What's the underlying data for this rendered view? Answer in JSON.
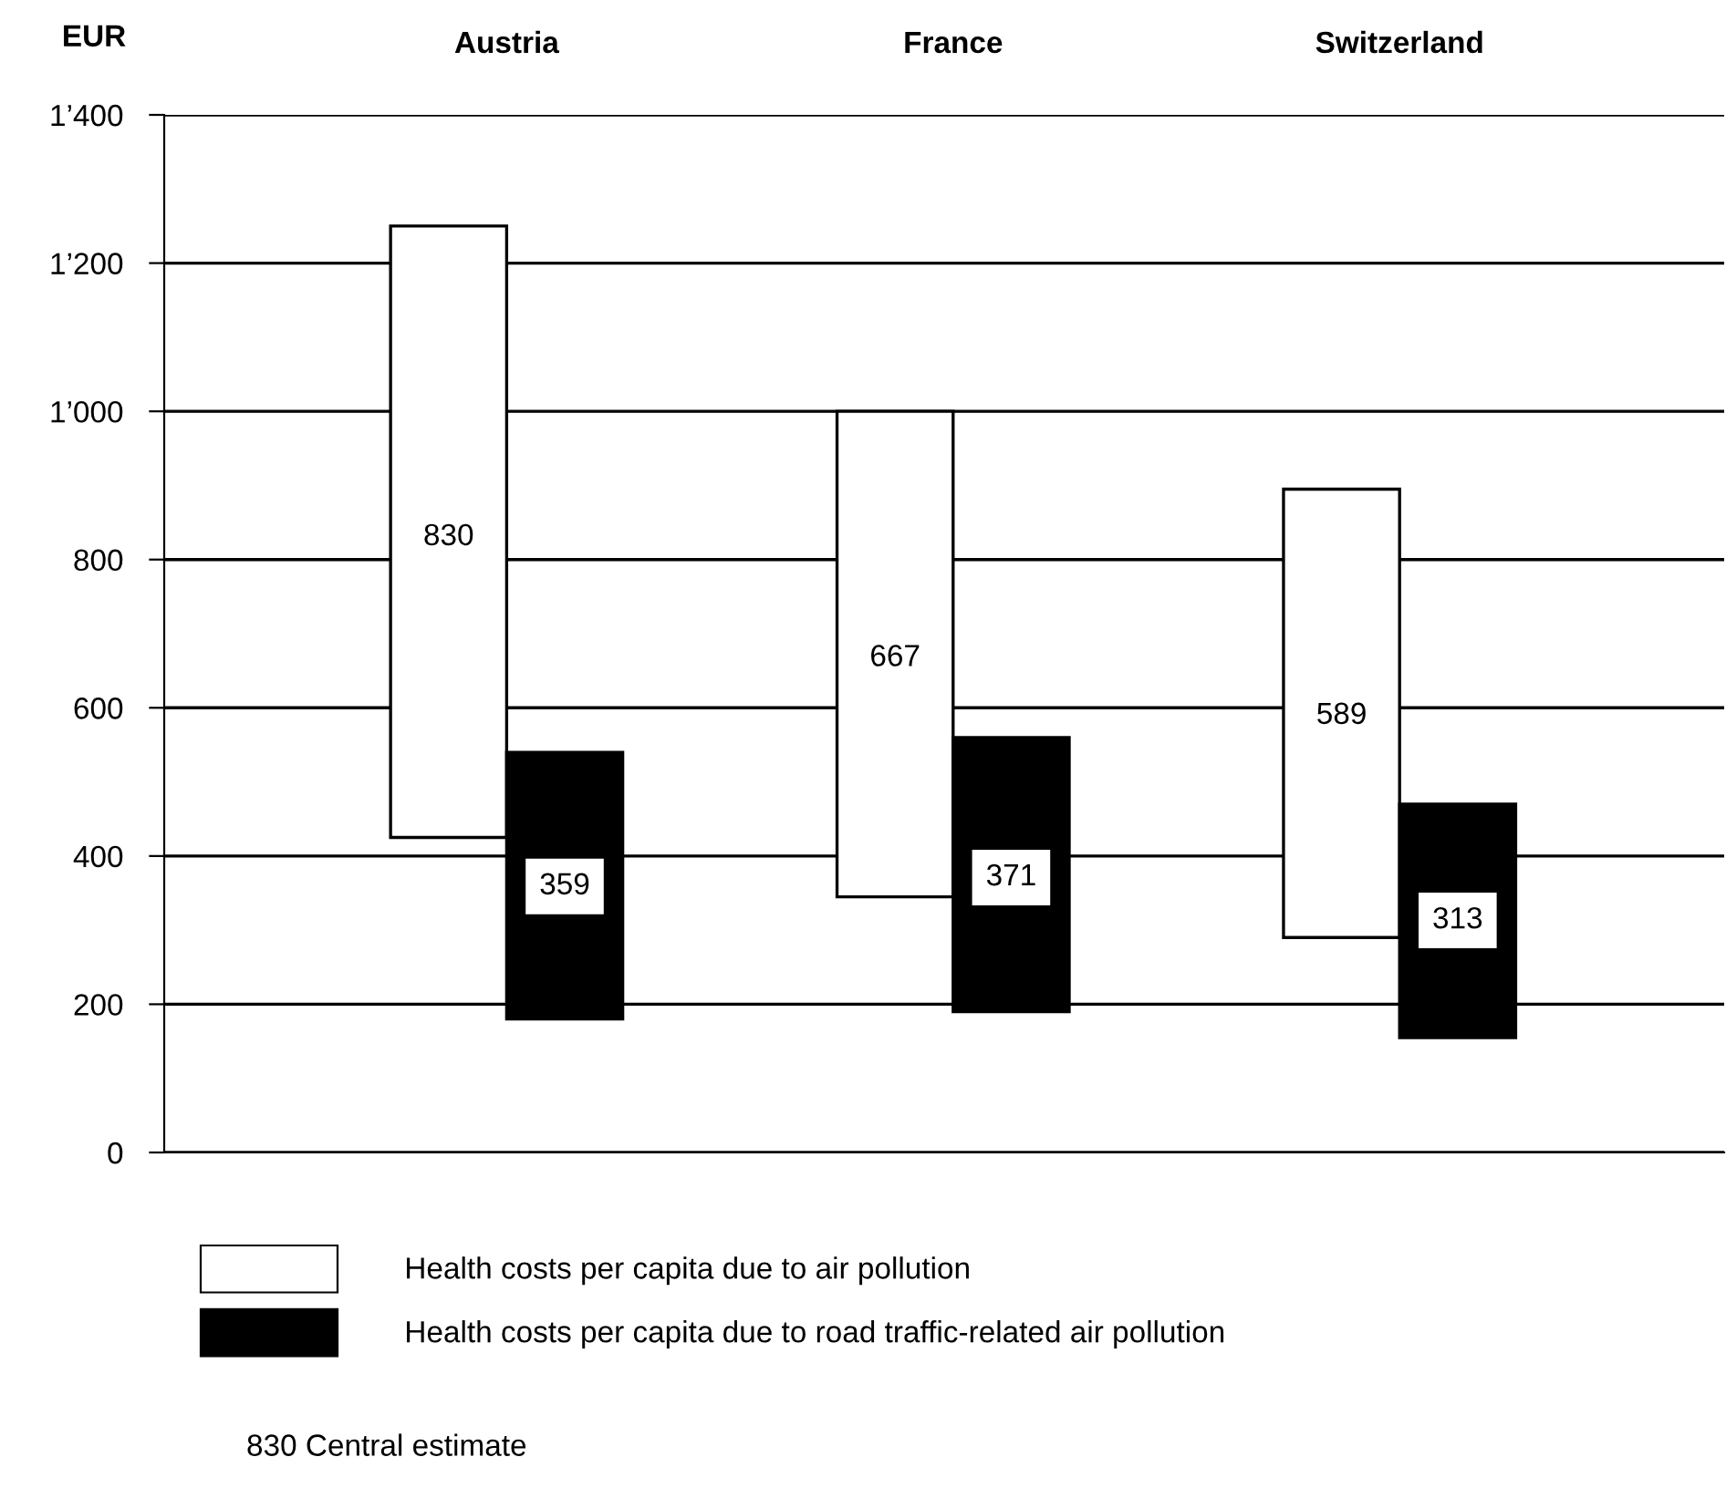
{
  "chart_data": {
    "type": "bar",
    "ylabel": "EUR",
    "categories": [
      "Austria",
      "France",
      "Switzerland"
    ],
    "series": [
      {
        "name": "Health costs per capita due to air pollution",
        "color": "#ffffff",
        "base": [
          425,
          345,
          290
        ],
        "values": [
          825,
          655,
          605
        ]
      },
      {
        "name": "Health costs per capita due to road traffic-related air pollution",
        "color": "#000000",
        "base": [
          180,
          190,
          155
        ],
        "values": [
          360,
          370,
          315
        ]
      }
    ],
    "ylim": [
      0,
      1400
    ],
    "yticks": [
      0,
      200,
      400,
      600,
      800,
      {
        "value": 1000,
        "label": "1’000"
      },
      {
        "value": 1200,
        "label": "1’200"
      },
      {
        "value": 1400,
        "label": "1’400"
      }
    ],
    "grid": "y",
    "legend": "bottom",
    "annotations": [
      {
        "text": "830",
        "x": "Austria",
        "y": 830
      },
      {
        "text": "667",
        "x": "France",
        "y": 667
      },
      {
        "text": "589",
        "x": "Switzerland",
        "y": 589
      },
      {
        "text": "359",
        "x": "Austria",
        "y": 359
      },
      {
        "text": "371",
        "x": "France",
        "y": 371
      },
      {
        "text": "313",
        "x": "Switzerland",
        "y": 313
      },
      "830 Central estimate"
    ]
  }
}
